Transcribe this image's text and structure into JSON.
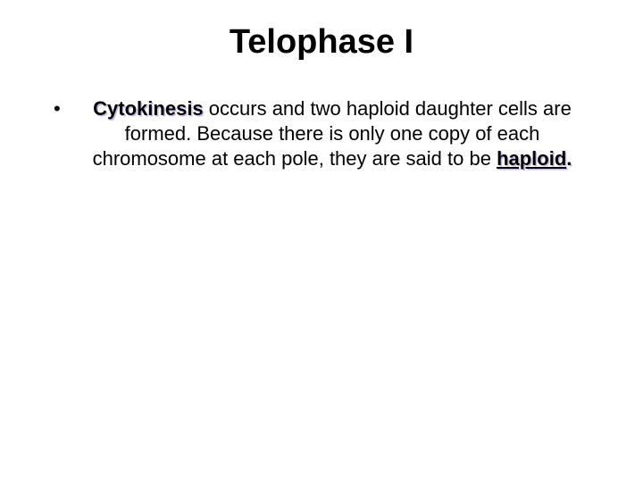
{
  "slide": {
    "title": "Telophase I",
    "title_color": "#8a5fcf",
    "title_shadow_color": "#c8b8e6",
    "title_fontsize_pt": 28,
    "bullet_glyph": "•",
    "body_fontsize_pt": 17,
    "body_text_color": "#000000",
    "highlight_shadow_color": "#c8b8e6",
    "background_color": "#ffffff",
    "bullet": {
      "bold_lead": "Cytokinesis",
      "text_after_lead": " occurs and two haploid daughter cells are formed. Because there is only one copy of each chromosome at each pole, they are said to be ",
      "underlined_term": "haploid",
      "trailing_period": "."
    }
  }
}
